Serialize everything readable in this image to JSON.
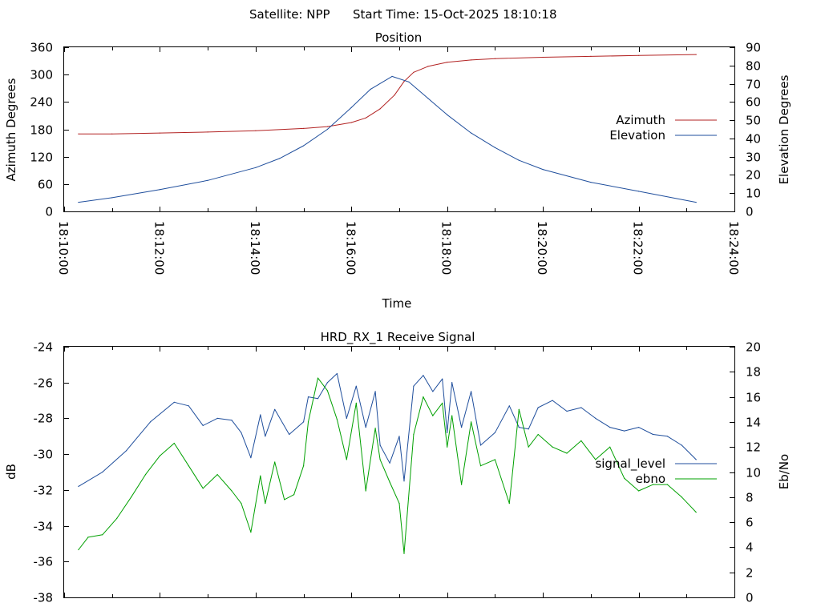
{
  "header": {
    "satellite": "Satellite: NPP",
    "start_time": "Start Time: 15-Oct-2025 18:10:18"
  },
  "chart_data": [
    {
      "type": "line",
      "title": "Position",
      "xlabel": "Time",
      "ylabel": "Azimuth Degrees",
      "y2label": "Elevation Degrees",
      "x_ticks": [
        "18:10:00",
        "18:12:00",
        "18:14:00",
        "18:16:00",
        "18:18:00",
        "18:20:00",
        "18:22:00",
        "18:24:00"
      ],
      "xlim_minutes": [
        0,
        14
      ],
      "ylim": [
        0,
        360
      ],
      "y_ticks": [
        "0",
        "60",
        "120",
        "180",
        "240",
        "300",
        "360"
      ],
      "y2lim": [
        0,
        90
      ],
      "y2_ticks": [
        "0",
        "10",
        "20",
        "30",
        "40",
        "50",
        "60",
        "70",
        "80",
        "90"
      ],
      "legend_position": "right",
      "series": [
        {
          "name": "Azimuth",
          "axis": "y",
          "color": "#b22222",
          "x_minutes": [
            0.3,
            1,
            2,
            3,
            4,
            5,
            5.5,
            6,
            6.3,
            6.6,
            6.9,
            7.1,
            7.3,
            7.6,
            8,
            8.5,
            9,
            10,
            11,
            12,
            13.2
          ],
          "values": [
            170,
            170,
            172,
            174,
            177,
            182,
            186,
            195,
            205,
            225,
            255,
            285,
            305,
            318,
            327,
            332,
            335,
            338,
            340,
            342,
            344
          ]
        },
        {
          "name": "Elevation",
          "axis": "y2",
          "color": "#1f4e9c",
          "x_minutes": [
            0.3,
            1,
            2,
            3,
            4,
            4.5,
            5,
            5.5,
            6,
            6.4,
            6.85,
            7.2,
            7.6,
            8,
            8.5,
            9,
            9.5,
            10,
            11,
            12,
            13.2
          ],
          "values": [
            5,
            7.5,
            12,
            17,
            24,
            29,
            36,
            45,
            57,
            67,
            74,
            71,
            62,
            53,
            43,
            35,
            28,
            23,
            16,
            11,
            5
          ]
        }
      ]
    },
    {
      "type": "line",
      "title": "HRD_RX_1 Receive Signal",
      "ylabel": "dB",
      "y2label": "Eb/No",
      "xlim_minutes": [
        0,
        14
      ],
      "ylim": [
        -38,
        -24
      ],
      "y_ticks": [
        "-24",
        "-26",
        "-28",
        "-30",
        "-32",
        "-34",
        "-36",
        "-38"
      ],
      "y2lim": [
        0,
        20
      ],
      "y2_ticks": [
        "0",
        "2",
        "4",
        "6",
        "8",
        "10",
        "12",
        "14",
        "16",
        "18",
        "20"
      ],
      "legend_position": "right",
      "series": [
        {
          "name": "signal_level",
          "axis": "y",
          "color": "#1f4e9c",
          "x_minutes": [
            0.3,
            0.8,
            1.3,
            1.8,
            2.3,
            2.6,
            2.9,
            3.2,
            3.5,
            3.7,
            3.9,
            4.1,
            4.2,
            4.4,
            4.7,
            5.0,
            5.1,
            5.3,
            5.5,
            5.7,
            5.9,
            6.1,
            6.3,
            6.5,
            6.6,
            6.8,
            7.0,
            7.1,
            7.3,
            7.5,
            7.7,
            7.9,
            8.0,
            8.1,
            8.3,
            8.5,
            8.7,
            9.0,
            9.3,
            9.5,
            9.7,
            9.9,
            10.2,
            10.5,
            10.8,
            11.1,
            11.4,
            11.7,
            12.0,
            12.3,
            12.6,
            12.9,
            13.2
          ],
          "values": [
            -31.8,
            -31.0,
            -29.8,
            -28.2,
            -27.1,
            -27.3,
            -28.4,
            -28.0,
            -28.1,
            -28.8,
            -30.2,
            -27.8,
            -29.0,
            -27.5,
            -28.9,
            -28.2,
            -26.8,
            -26.9,
            -26.0,
            -25.5,
            -28.0,
            -26.2,
            -28.5,
            -26.5,
            -29.5,
            -30.5,
            -29.0,
            -31.5,
            -26.2,
            -25.6,
            -26.5,
            -25.8,
            -28.8,
            -26.0,
            -28.5,
            -26.5,
            -29.5,
            -28.8,
            -27.3,
            -28.5,
            -28.6,
            -27.4,
            -27.0,
            -27.6,
            -27.4,
            -28.0,
            -28.5,
            -28.7,
            -28.5,
            -28.9,
            -29.0,
            -29.5,
            -30.3
          ]
        },
        {
          "name": "ebno",
          "axis": "y2",
          "color": "#00a000",
          "x_minutes": [
            0.3,
            0.5,
            0.8,
            1.1,
            1.4,
            1.7,
            2.0,
            2.3,
            2.6,
            2.9,
            3.2,
            3.5,
            3.7,
            3.9,
            4.1,
            4.2,
            4.4,
            4.6,
            4.8,
            5.0,
            5.1,
            5.3,
            5.5,
            5.7,
            5.9,
            6.1,
            6.3,
            6.5,
            6.6,
            6.8,
            7.0,
            7.1,
            7.3,
            7.5,
            7.7,
            7.9,
            8.0,
            8.1,
            8.3,
            8.5,
            8.7,
            9.0,
            9.3,
            9.5,
            9.7,
            9.9,
            10.2,
            10.5,
            10.8,
            11.1,
            11.4,
            11.7,
            12.0,
            12.3,
            12.6,
            12.9,
            13.2
          ],
          "values": [
            3.8,
            4.8,
            5.0,
            6.3,
            8.0,
            9.8,
            11.3,
            12.3,
            10.5,
            8.7,
            9.8,
            8.5,
            7.5,
            5.2,
            9.7,
            7.5,
            10.8,
            7.8,
            8.2,
            10.5,
            14.0,
            17.5,
            16.5,
            14.2,
            11.0,
            15.5,
            8.5,
            13.5,
            11.0,
            9.2,
            7.5,
            3.5,
            13.0,
            16.0,
            14.5,
            15.5,
            12.0,
            14.5,
            9.0,
            14.0,
            10.5,
            11.0,
            7.5,
            15.0,
            12.0,
            13.0,
            12.0,
            11.5,
            12.5,
            11.0,
            12.0,
            9.5,
            8.5,
            9.0,
            9.0,
            8.0,
            6.8
          ]
        }
      ]
    }
  ]
}
